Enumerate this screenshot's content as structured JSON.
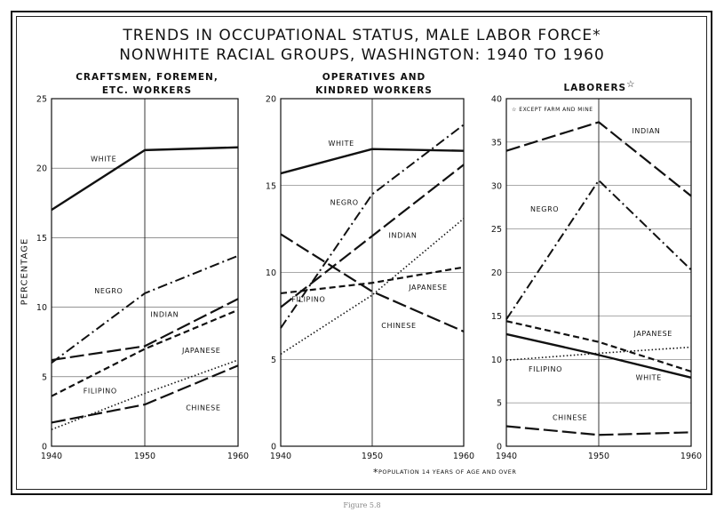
{
  "header": {
    "title_line1": "TRENDS IN OCCUPATIONAL STATUS, MALE LABOR FORCE",
    "title_line1_mark": "*",
    "title_line2": "NONWHITE RACIAL GROUPS, WASHINGTON: 1940 TO 1960"
  },
  "ylabel": "PERCENTAGE",
  "footnote": {
    "mark": "*",
    "text": "POPULATION 14 YEARS OF AGE AND OVER"
  },
  "laborer_note": "☆ EXCEPT FARM AND MINE",
  "figure_caption": "Figure 5.8",
  "chart_data": [
    {
      "type": "line",
      "title_lines": [
        "CRAFTSMEN, FOREMEN,",
        "ETC. WORKERS"
      ],
      "x": [
        1940,
        1950,
        1960
      ],
      "xticks": [
        "1940",
        "1950",
        "1960"
      ],
      "ylim": [
        0,
        25
      ],
      "yticks": [
        0,
        5,
        10,
        15,
        20,
        25
      ],
      "grid": true,
      "series": [
        {
          "name": "WHITE",
          "values": [
            17.0,
            21.3,
            21.5
          ],
          "style": "solid"
        },
        {
          "name": "NEGRO",
          "values": [
            6.0,
            11.0,
            13.7
          ],
          "style": "dashdot"
        },
        {
          "name": "INDIAN",
          "values": [
            6.2,
            7.2,
            10.6
          ],
          "style": "longdash"
        },
        {
          "name": "JAPANESE",
          "values": [
            3.6,
            7.0,
            9.8
          ],
          "style": "dashed"
        },
        {
          "name": "FILIPINO",
          "values": [
            1.2,
            3.8,
            6.2
          ],
          "style": "dotted"
        },
        {
          "name": "CHINESE",
          "values": [
            1.7,
            3.0,
            5.8
          ],
          "style": "longdash"
        }
      ]
    },
    {
      "type": "line",
      "title_lines": [
        "OPERATIVES AND",
        "KINDRED WORKERS"
      ],
      "x": [
        1940,
        1950,
        1960
      ],
      "xticks": [
        "1940",
        "1950",
        "1960"
      ],
      "ylim": [
        0,
        20
      ],
      "yticks": [
        0,
        5,
        10,
        15,
        20
      ],
      "grid": true,
      "series": [
        {
          "name": "WHITE",
          "values": [
            15.7,
            17.1,
            17.0
          ],
          "style": "solid"
        },
        {
          "name": "NEGRO",
          "values": [
            6.8,
            14.5,
            18.5
          ],
          "style": "dashdot"
        },
        {
          "name": "INDIAN",
          "values": [
            8.0,
            12.1,
            16.2
          ],
          "style": "longdash"
        },
        {
          "name": "JAPANESE",
          "values": [
            8.8,
            9.4,
            10.3
          ],
          "style": "dashed"
        },
        {
          "name": "FILIPINO",
          "values": [
            5.3,
            8.7,
            13.1
          ],
          "style": "dotted"
        },
        {
          "name": "CHINESE",
          "values": [
            12.2,
            8.9,
            6.6
          ],
          "style": "longdash"
        }
      ]
    },
    {
      "type": "line",
      "title_lines": [
        "LABORERS"
      ],
      "title_mark": "☆",
      "x": [
        1940,
        1950,
        1960
      ],
      "xticks": [
        "1940",
        "1950",
        "1960"
      ],
      "ylim": [
        0,
        40
      ],
      "yticks": [
        0,
        5,
        10,
        15,
        20,
        25,
        30,
        35,
        40
      ],
      "grid": true,
      "series": [
        {
          "name": "INDIAN",
          "values": [
            34.0,
            37.3,
            28.8
          ],
          "style": "longdash"
        },
        {
          "name": "NEGRO",
          "values": [
            14.6,
            30.6,
            20.3
          ],
          "style": "dashdot"
        },
        {
          "name": "JAPANESE",
          "values": [
            14.4,
            12.0,
            8.6
          ],
          "style": "dashed"
        },
        {
          "name": "FILIPINO",
          "values": [
            9.9,
            10.7,
            11.4
          ],
          "style": "dotted"
        },
        {
          "name": "WHITE",
          "values": [
            12.9,
            10.5,
            7.9
          ],
          "style": "solid"
        },
        {
          "name": "CHINESE",
          "values": [
            2.3,
            1.3,
            1.6
          ],
          "style": "longdash"
        }
      ]
    }
  ]
}
